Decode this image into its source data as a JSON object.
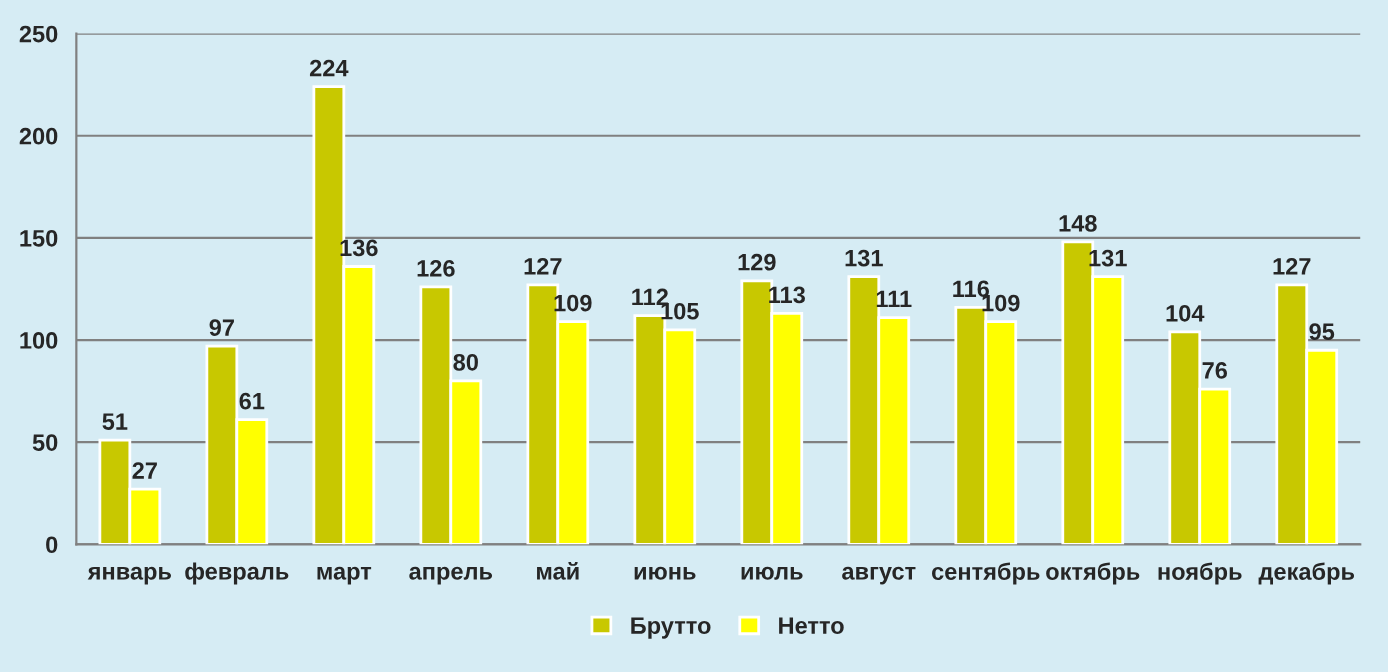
{
  "chart_data": {
    "type": "bar",
    "categories": [
      "январь",
      "февраль",
      "март",
      "апрель",
      "май",
      "июнь",
      "июль",
      "август",
      "сентябрь",
      "октябрь",
      "ноябрь",
      "декабрь"
    ],
    "series": [
      {
        "name": "Брутто",
        "color": "#c8c800",
        "values": [
          51,
          97,
          224,
          126,
          127,
          112,
          129,
          131,
          116,
          148,
          104,
          127
        ]
      },
      {
        "name": "Нетто",
        "color": "#ffff00",
        "values": [
          27,
          61,
          136,
          80,
          109,
          105,
          113,
          111,
          109,
          131,
          76,
          95
        ]
      }
    ],
    "ylim": [
      0,
      250
    ],
    "yticks": [
      0,
      50,
      100,
      150,
      200,
      250
    ],
    "grid": "y",
    "legend": "bottom",
    "data_labels": true
  }
}
